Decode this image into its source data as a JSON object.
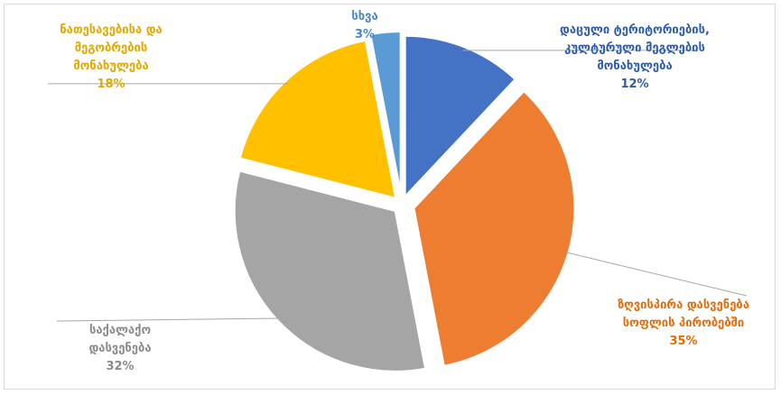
{
  "chart_data": {
    "type": "pie",
    "title": "",
    "exploded": true,
    "slices": [
      {
        "label_lines": [
          "დაცული ტერიტორიების,",
          "კულტურული მეგლების",
          "მონახულება"
        ],
        "value": 12,
        "value_label": "12%",
        "color": "#4472C4",
        "label_color": "#2E5BA8"
      },
      {
        "label_lines": [
          "ზღვისპირა დასვენება",
          "სოფლის პირობებში"
        ],
        "value": 35,
        "value_label": "35%",
        "color": "#ED7D31",
        "label_color": "#E36C0A"
      },
      {
        "label_lines": [
          "საქალაქო",
          "დასვენება"
        ],
        "value": 32,
        "value_label": "32%",
        "color": "#A5A5A5",
        "label_color": "#8A8A8A"
      },
      {
        "label_lines": [
          "ნათესავებისა და",
          "მეგობრების",
          "მონახულება"
        ],
        "value": 18,
        "value_label": "18%",
        "color": "#FFC000",
        "label_color": "#E0A800"
      },
      {
        "label_lines": [
          "სხვა"
        ],
        "value": 3,
        "value_label": "3%",
        "color": "#5B9BD5",
        "label_color": "#4A86C5"
      }
    ]
  }
}
